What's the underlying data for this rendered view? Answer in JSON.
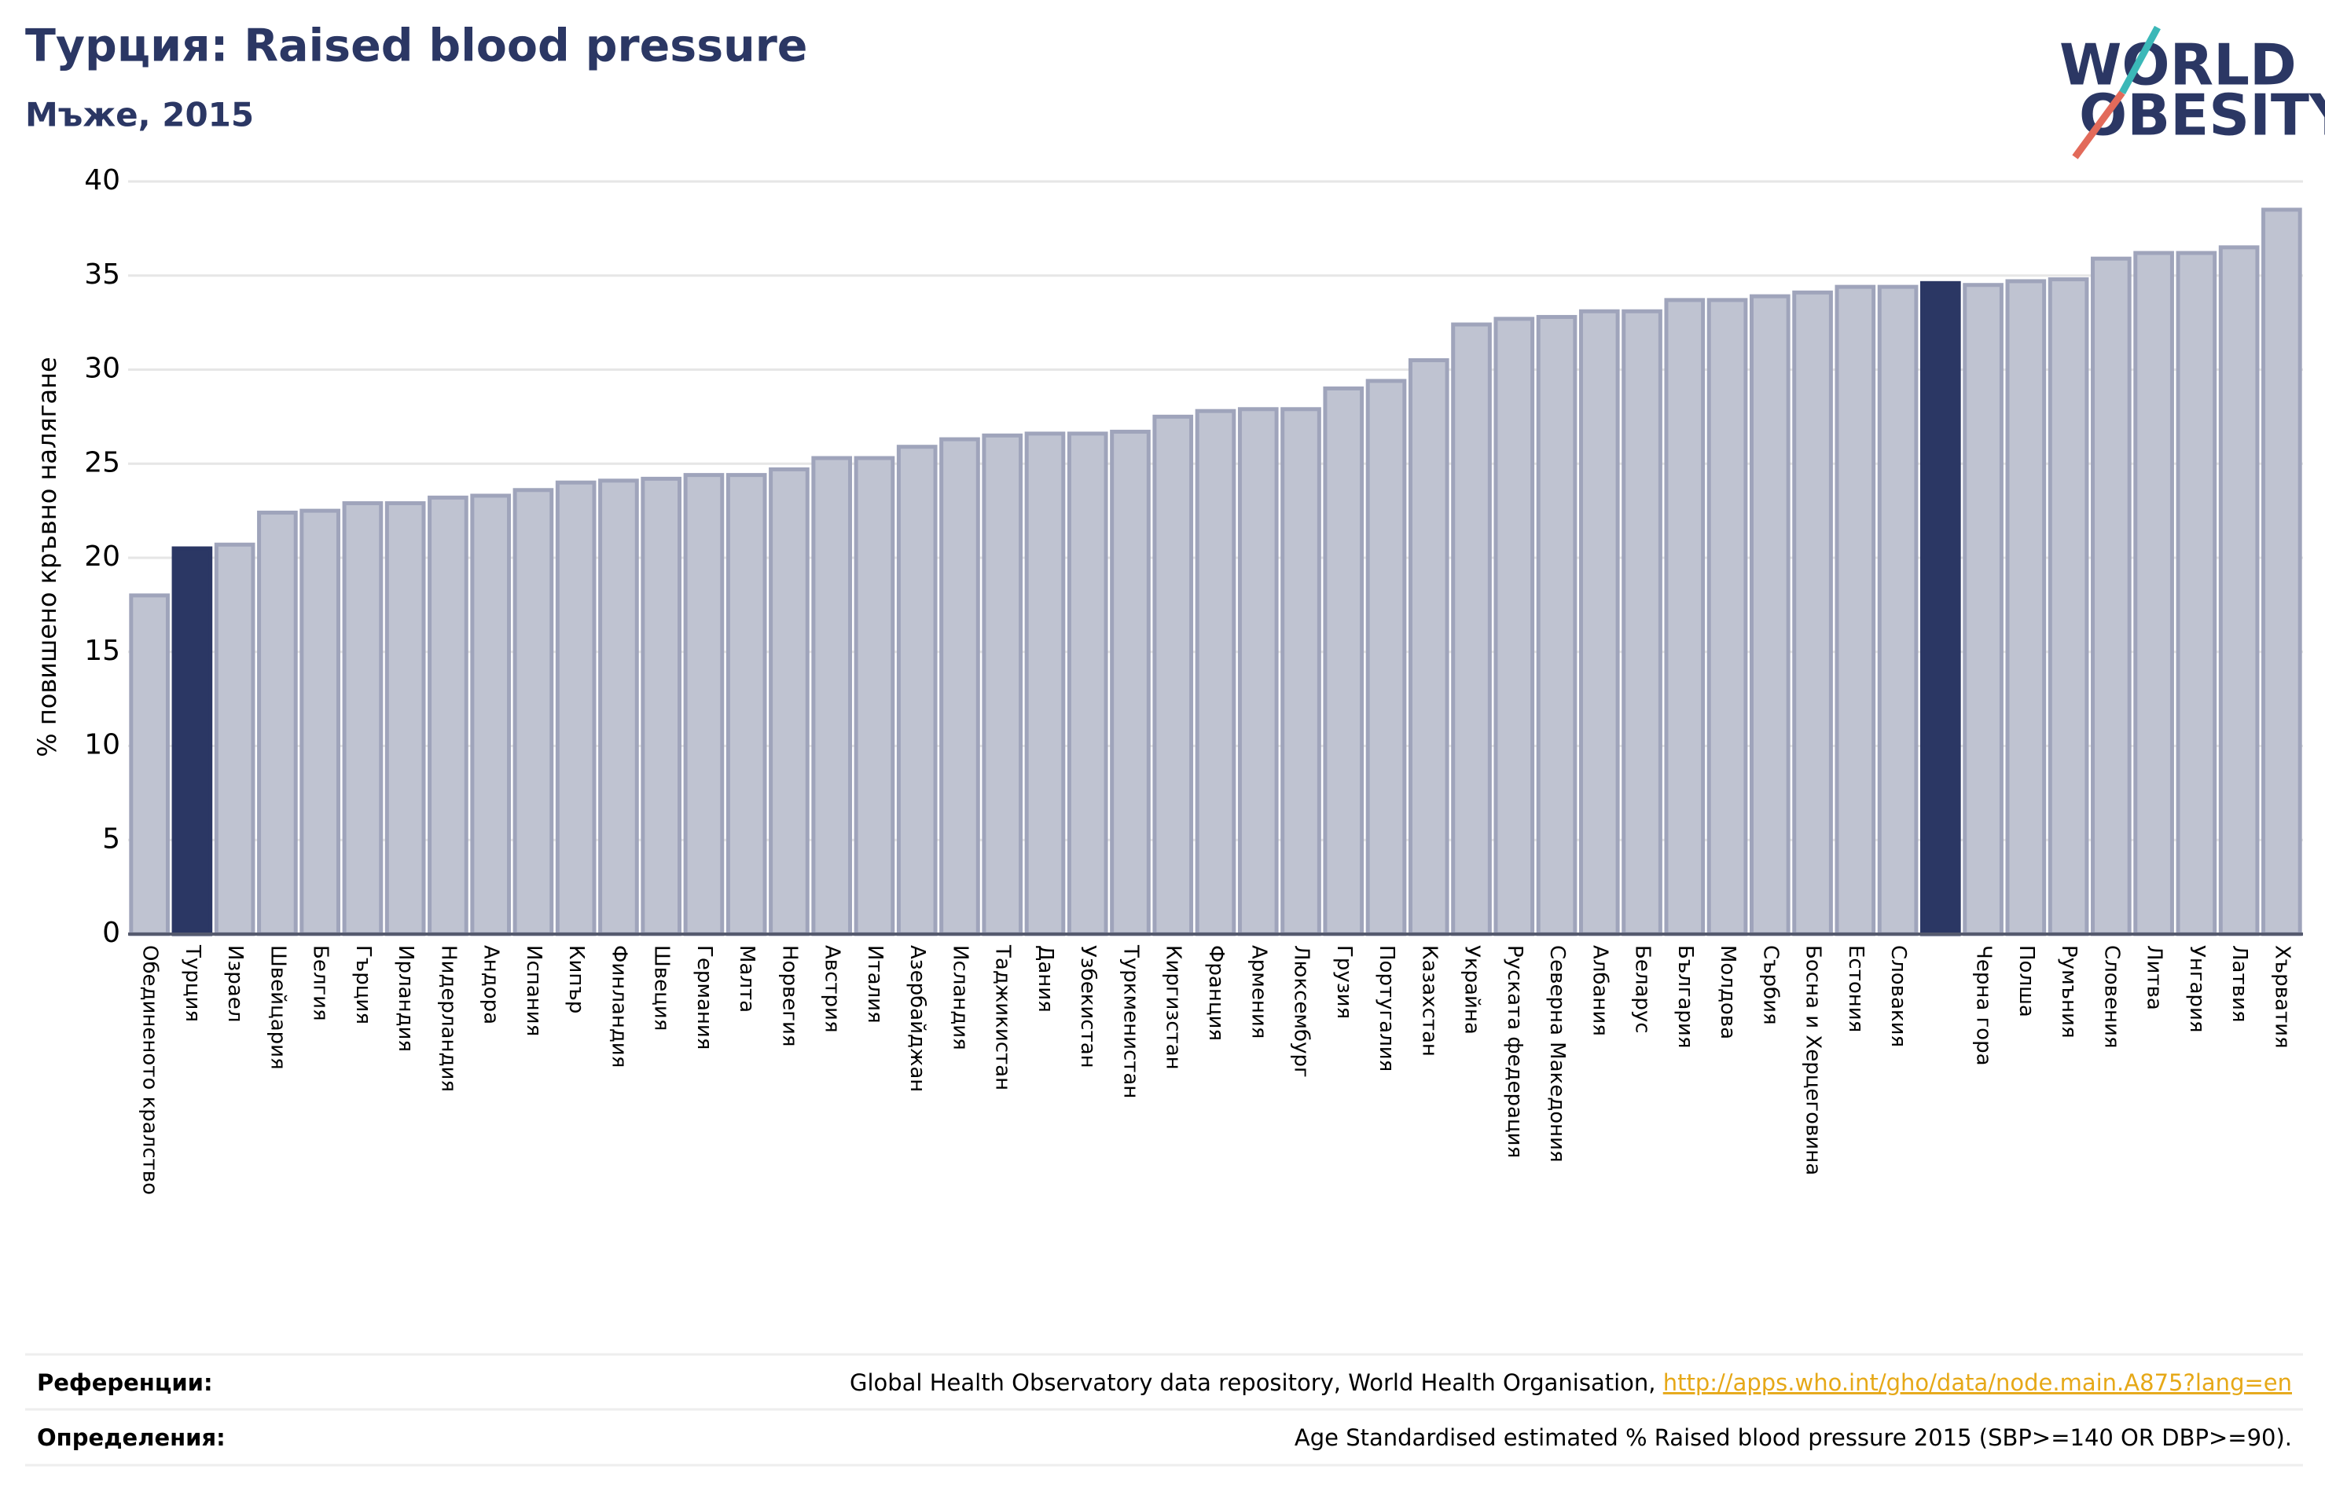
{
  "chart_data": {
    "type": "bar",
    "title": "Турция: Raised blood pressure",
    "subtitle": "Мъже, 2015",
    "y_label": "% повишено кръвно налягане",
    "logo": [
      "WORLD",
      "OBESITY"
    ],
    "categories": [
      "Обединеното кралство",
      "Турция",
      "Израел",
      "Швейцария",
      "Белгия",
      "Гърция",
      "Ирландия",
      "Нидерландия",
      "Андора",
      "Испания",
      "Кипър",
      "Финландия",
      "Швеция",
      "Германия",
      "Малта",
      "Норвегия",
      "Австрия",
      "Италия",
      "Азербайджан",
      "Исландия",
      "Таджикистан",
      "Дания",
      "Узбекистан",
      "Туркменистан",
      "Киргизстан",
      "Франция",
      "Армения",
      "Люксембург",
      "Грузия",
      "Португалия",
      "Казахстан",
      "Украйна",
      "Руската федерация",
      "Северна Македония",
      "Албания",
      "Беларус",
      "България",
      "Молдова",
      "Сърбия",
      "Босна и Херцеговина",
      "Естония",
      "Словакия",
      null,
      "Черна гора",
      "Полша",
      "Румъния",
      "Словения",
      "Литва",
      "Унгария",
      "Латвия",
      "Хърватия"
    ],
    "values": [
      18.0,
      20.5,
      20.7,
      22.4,
      22.5,
      22.9,
      22.9,
      23.2,
      23.3,
      23.6,
      24.0,
      24.1,
      24.2,
      24.4,
      24.4,
      24.7,
      25.3,
      25.3,
      25.9,
      26.3,
      26.5,
      26.6,
      26.6,
      26.7,
      27.5,
      27.8,
      27.9,
      27.9,
      29.0,
      29.4,
      30.5,
      32.4,
      32.7,
      32.8,
      33.1,
      33.1,
      33.7,
      33.7,
      33.9,
      34.1,
      34.4,
      34.4,
      34.6,
      34.5,
      34.7,
      34.8,
      35.9,
      36.2,
      36.2,
      36.5,
      38.5
    ],
    "color": "#bfc3d1",
    "edge_color": "#9fa4bb",
    "highlight": [
      1,
      42
    ],
    "highlight_color": "#2b3764",
    "ylim": [
      0,
      40
    ],
    "yticks": [
      0,
      5,
      10,
      15,
      20,
      25,
      30,
      35,
      40
    ],
    "grid": true,
    "footer": {
      "references_label": "Референции:",
      "references_text": "Global Health Observatory data repository, World Health Organisation, ",
      "references_link": "http://apps.who.int/gho/data/node.main.A875?lang=en",
      "definitions_label": "Определения:",
      "definitions_text": "Age Standardised estimated % Raised blood pressure 2015 (SBP>=140 OR DBP>=90)."
    }
  }
}
